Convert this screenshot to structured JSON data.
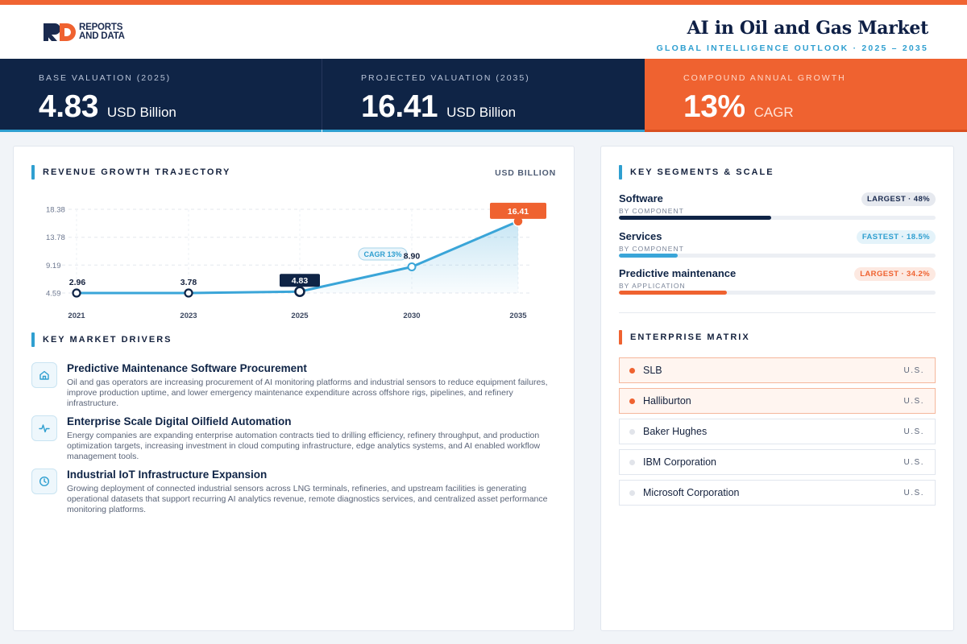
{
  "header": {
    "brand_line1": "REPORTS",
    "brand_line2": "AND DATA",
    "title": "AI in Oil and Gas Market",
    "subtitle": "GLOBAL INTELLIGENCE OUTLOOK  ·  2025 – 2035"
  },
  "kpis": [
    {
      "label": "BASE VALUATION (2025)",
      "value": "4.83",
      "unit": "USD Billion"
    },
    {
      "label": "PROJECTED VALUATION (2035)",
      "value": "16.41",
      "unit": "USD Billion"
    },
    {
      "label": "COMPOUND ANNUAL GROWTH",
      "value": "13%",
      "unit": "CAGR"
    }
  ],
  "revenue": {
    "section_title": "REVENUE GROWTH TRAJECTORY",
    "unit_label": "USD BILLION",
    "cagr_label": "CAGR 13%"
  },
  "chart_data": {
    "type": "line",
    "x": [
      "2021",
      "2023",
      "2025",
      "2030",
      "2035"
    ],
    "series": [
      {
        "values": [
          2.96,
          3.78,
          4.83,
          8.9,
          16.41
        ]
      }
    ],
    "data_labels": [
      "2.96",
      "3.78",
      "4.83",
      "8.90",
      "16.41"
    ],
    "y_ticks": [
      4.59,
      9.19,
      13.78,
      18.38
    ],
    "y_tick_labels": [
      "4.59",
      "9.19",
      "13.78",
      "18.38"
    ],
    "ylim": [
      0,
      18.38
    ],
    "grid": true,
    "annotation": "CAGR 13%",
    "highlight": {
      "2025": "#0f2446",
      "2035": "#ef6230"
    },
    "line_color": "#3aa5d8"
  },
  "drivers": {
    "section_title": "KEY MARKET DRIVERS",
    "items": [
      {
        "icon": "home-icon",
        "title": "Predictive Maintenance Software Procurement",
        "desc": "Oil and gas operators are increasing procurement of AI monitoring platforms and industrial sensors to reduce equipment failures, improve production uptime, and lower emergency maintenance expenditure across offshore rigs, pipelines, and refinery infrastructure."
      },
      {
        "icon": "pulse-icon",
        "title": "Enterprise Scale Digital Oilfield Automation",
        "desc": "Energy companies are expanding enterprise automation contracts tied to drilling efficiency, refinery throughput, and production optimization targets, increasing investment in cloud computing infrastructure, edge analytics systems, and AI enabled workflow management tools."
      },
      {
        "icon": "clock-icon",
        "title": "Industrial IoT Infrastructure Expansion",
        "desc": "Growing deployment of connected industrial sensors across LNG terminals, refineries, and upstream facilities is generating operational datasets that support recurring AI analytics revenue, remote diagnostics services, and centralized asset performance monitoring platforms."
      }
    ]
  },
  "segments": {
    "section_title": "KEY SEGMENTS & SCALE",
    "items": [
      {
        "name": "Software",
        "sub": "BY COMPONENT",
        "badge": "LARGEST · 48%",
        "fill": 0.48,
        "color": "#0f2446"
      },
      {
        "name": "Services",
        "sub": "BY COMPONENT",
        "badge": "FASTEST · 18.5%",
        "fill": 0.185,
        "color": "#3aa5d8"
      },
      {
        "name": "Predictive maintenance",
        "sub": "BY APPLICATION",
        "badge": "LARGEST · 34.2%",
        "fill": 0.342,
        "color": "#ef6230"
      }
    ]
  },
  "enterprise": {
    "section_title": "ENTERPRISE MATRIX",
    "items": [
      {
        "name": "SLB",
        "country": "U.S."
      },
      {
        "name": "Halliburton",
        "country": "U.S."
      },
      {
        "name": "Baker Hughes",
        "country": "U.S."
      },
      {
        "name": "IBM Corporation",
        "country": "U.S."
      },
      {
        "name": "Microsoft Corporation",
        "country": "U.S."
      }
    ]
  }
}
